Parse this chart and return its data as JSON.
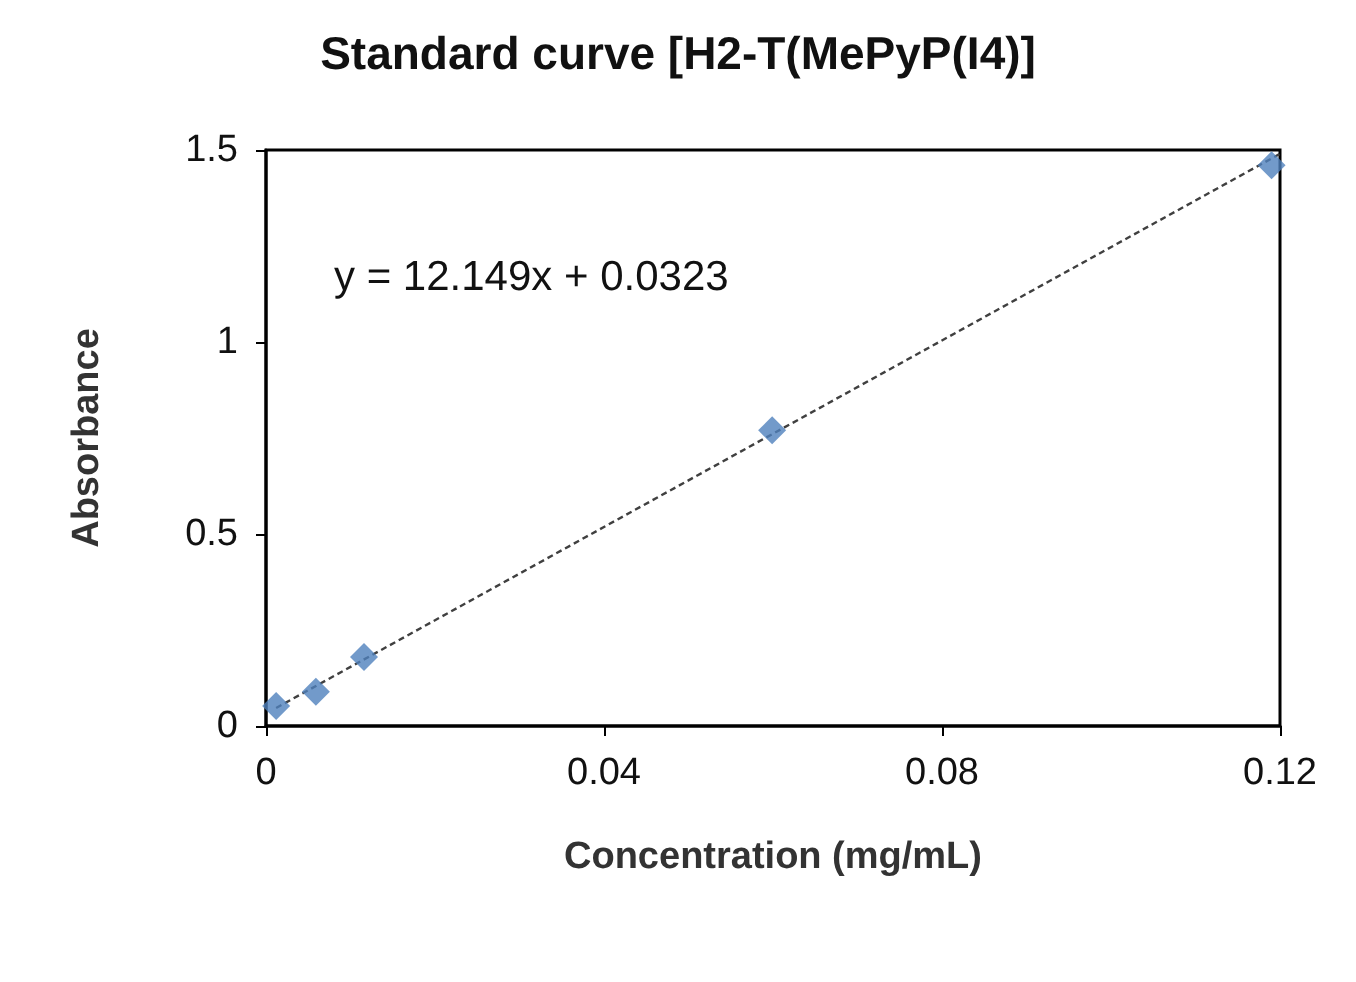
{
  "chart_data": {
    "type": "scatter",
    "title": "Standard curve [H2-T(MePyP(I4)]",
    "xlabel": "Concentration (mg/mL)",
    "ylabel": "Absorbance",
    "annotations": [
      "y = 12.149x + 0.0323"
    ],
    "series": [
      {
        "color": "#4f81bd",
        "marker": "diamond",
        "x": [
          0.0012,
          0.0059,
          0.0116,
          0.0599,
          0.119
        ],
        "values": [
          0.052,
          0.089,
          0.18,
          0.77,
          1.46
        ]
      },
      {
        "type": "line",
        "color": "#404040",
        "marker": "none",
        "line_style": "dashed",
        "x": [
          0.0012,
          0.12
        ],
        "values": [
          0.047,
          1.49
        ]
      }
    ],
    "xlim": [
      0,
      0.12
    ],
    "xticks": [
      0,
      0.04,
      0.08,
      0.12
    ],
    "ylim": [
      0,
      1.5
    ],
    "yticks": [
      0,
      0.5,
      1,
      1.5
    ],
    "grid": false
  }
}
